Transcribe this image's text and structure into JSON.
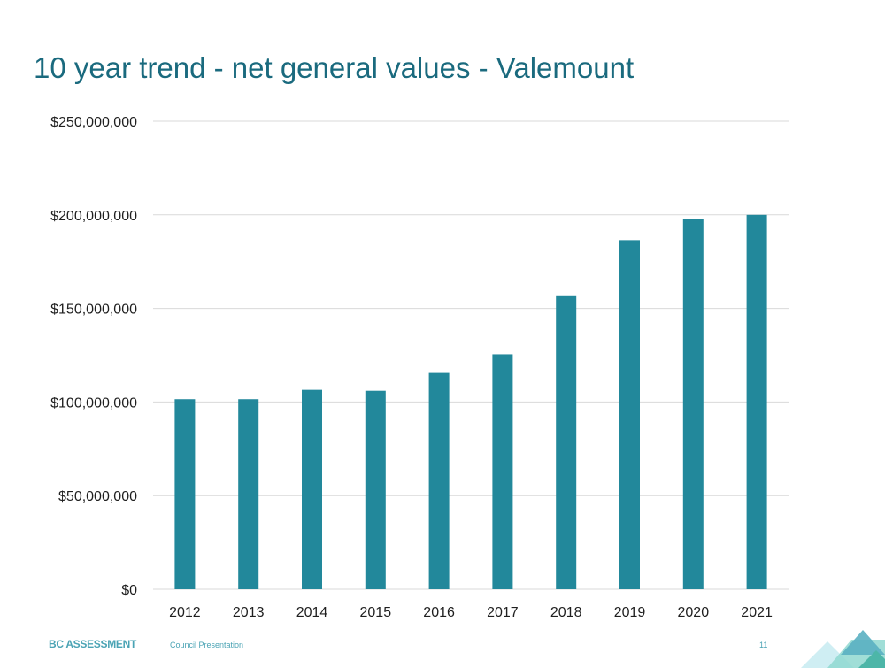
{
  "slide": {
    "title": "10 year trend - net general values - Valemount",
    "footer_brand": "BC ASSESSMENT",
    "footer_subtitle": "Council Presentation",
    "page_number": "11"
  },
  "colors": {
    "title": "#1a6a7e",
    "bar": "#22889b",
    "grid": "#d9d9d9",
    "footer": "#4aa3b4"
  },
  "chart_data": {
    "type": "bar",
    "title": "",
    "xlabel": "",
    "ylabel": "",
    "categories": [
      "2012",
      "2013",
      "2014",
      "2015",
      "2016",
      "2017",
      "2018",
      "2019",
      "2020",
      "2021"
    ],
    "values": [
      101500000,
      101500000,
      106500000,
      106000000,
      115500000,
      125500000,
      157000000,
      186500000,
      198000000,
      200000000
    ],
    "ylim": [
      0,
      250000000
    ],
    "yticks": [
      0,
      50000000,
      100000000,
      150000000,
      200000000,
      250000000
    ],
    "ytick_labels": [
      "$0",
      "$50,000,000",
      "$100,000,000",
      "$150,000,000",
      "$200,000,000",
      "$250,000,000"
    ],
    "grid": true,
    "legend": "none"
  }
}
